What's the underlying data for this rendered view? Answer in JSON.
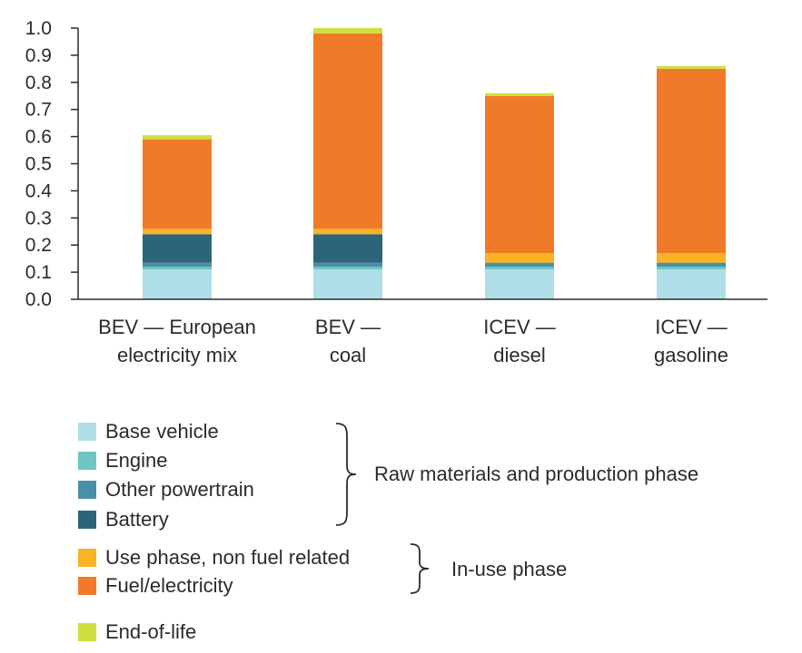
{
  "chart_data": {
    "type": "bar",
    "stacked": true,
    "categories": [
      [
        "BEV — European",
        "electricity mix"
      ],
      [
        "BEV —",
        "coal"
      ],
      [
        "ICEV —",
        "diesel"
      ],
      [
        "ICEV —",
        "gasoline"
      ]
    ],
    "series": [
      {
        "name": "Base vehicle",
        "color": "#aedfe8",
        "values": [
          0.11,
          0.11,
          0.11,
          0.11
        ]
      },
      {
        "name": "Engine",
        "color": "#6ec6c4",
        "values": [
          0.01,
          0.01,
          0.01,
          0.01
        ]
      },
      {
        "name": "Other powertrain",
        "color": "#4a8fa8",
        "values": [
          0.015,
          0.015,
          0.015,
          0.015
        ]
      },
      {
        "name": "Battery",
        "color": "#2d6478",
        "values": [
          0.105,
          0.105,
          0.0,
          0.0
        ]
      },
      {
        "name": "Use phase, non fuel related",
        "color": "#f9b323",
        "values": [
          0.02,
          0.02,
          0.035,
          0.035
        ]
      },
      {
        "name": "Fuel/electricity",
        "color": "#f07a27",
        "values": [
          0.33,
          0.72,
          0.58,
          0.68
        ]
      },
      {
        "name": "End-of-life",
        "color": "#cfdf3f",
        "values": [
          0.015,
          0.02,
          0.01,
          0.01
        ]
      }
    ],
    "yticks": [
      "0.0",
      "0.1",
      "0.2",
      "0.3",
      "0.4",
      "0.5",
      "0.6",
      "0.7",
      "0.8",
      "0.9",
      "1.0"
    ],
    "ylim": [
      0,
      1.0
    ],
    "grid": false,
    "legend": {
      "groups": [
        {
          "label": "Raw materials and production phase",
          "series": [
            "Base vehicle",
            "Engine",
            "Other powertrain",
            "Battery"
          ]
        },
        {
          "label": "In-use phase",
          "series": [
            "Use phase, non fuel related",
            "Fuel/electricity"
          ]
        },
        {
          "label": "",
          "series": [
            "End-of-life"
          ]
        }
      ],
      "placement": "bottom"
    }
  }
}
